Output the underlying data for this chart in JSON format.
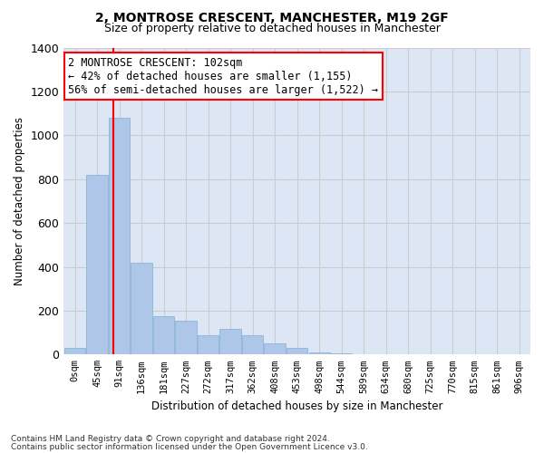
{
  "title1": "2, MONTROSE CRESCENT, MANCHESTER, M19 2GF",
  "title2": "Size of property relative to detached houses in Manchester",
  "xlabel": "Distribution of detached houses by size in Manchester",
  "ylabel": "Number of detached properties",
  "bin_labels": [
    "0sqm",
    "45sqm",
    "91sqm",
    "136sqm",
    "181sqm",
    "227sqm",
    "272sqm",
    "317sqm",
    "362sqm",
    "408sqm",
    "453sqm",
    "498sqm",
    "544sqm",
    "589sqm",
    "634sqm",
    "680sqm",
    "725sqm",
    "770sqm",
    "815sqm",
    "861sqm",
    "906sqm"
  ],
  "bar_heights": [
    30,
    820,
    1080,
    420,
    175,
    155,
    90,
    115,
    90,
    50,
    30,
    10,
    5,
    0,
    0,
    0,
    0,
    0,
    0,
    0,
    0
  ],
  "bar_color": "#aec6e8",
  "bar_edge_color": "#7fafd4",
  "property_sqm": 102,
  "property_label": "2 MONTROSE CRESCENT: 102sqm",
  "annotation_line1": "← 42% of detached houses are smaller (1,155)",
  "annotation_line2": "56% of semi-detached houses are larger (1,522) →",
  "ylim": [
    0,
    1400
  ],
  "yticks": [
    0,
    200,
    400,
    600,
    800,
    1000,
    1200,
    1400
  ],
  "grid_color": "#cccccc",
  "bg_color": "#dce6f5",
  "footer1": "Contains HM Land Registry data © Crown copyright and database right 2024.",
  "footer2": "Contains public sector information licensed under the Open Government Licence v3.0."
}
